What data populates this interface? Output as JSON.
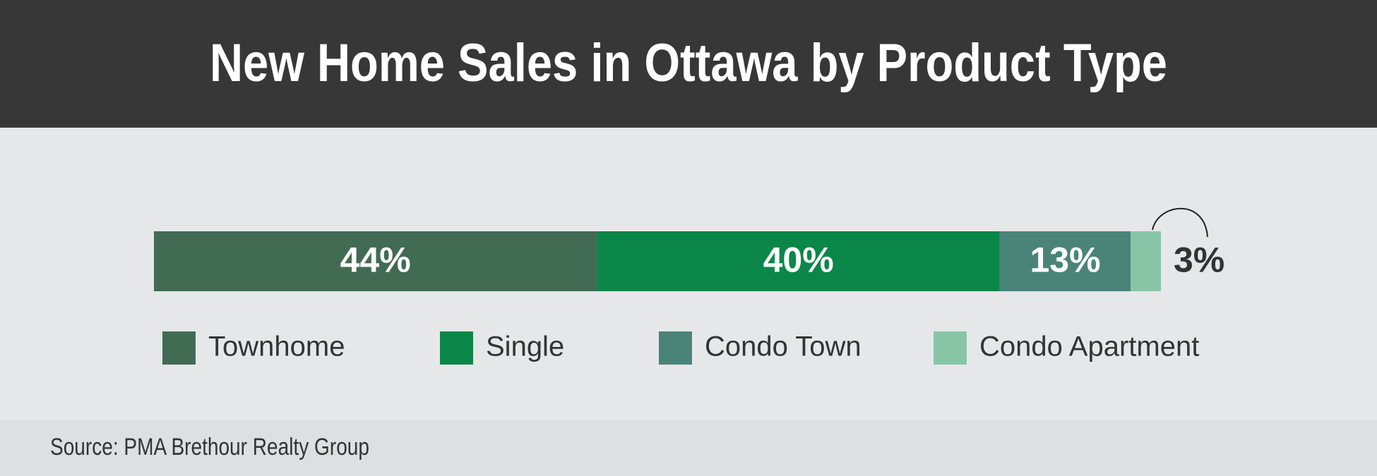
{
  "chart_data": {
    "type": "bar",
    "orientation": "horizontal",
    "stacked": true,
    "title": "New Home Sales in Ottawa by Product Type",
    "categories": [
      null
    ],
    "series": [
      {
        "name": "Townhome",
        "color": "#426b54",
        "values": [
          44
        ],
        "value_labels": [
          "44%"
        ]
      },
      {
        "name": "Single",
        "color": "#0a8748",
        "values": [
          40
        ],
        "value_labels": [
          "40%"
        ]
      },
      {
        "name": "Condo Town",
        "color": "#4a8478",
        "values": [
          13
        ],
        "value_labels": [
          "13%"
        ]
      },
      {
        "name": "Condo Apartment",
        "color": "#88c5a7",
        "values": [
          3
        ],
        "value_labels": [
          "3%"
        ]
      }
    ],
    "source": "Source: PMA Brethour Realty Group"
  }
}
